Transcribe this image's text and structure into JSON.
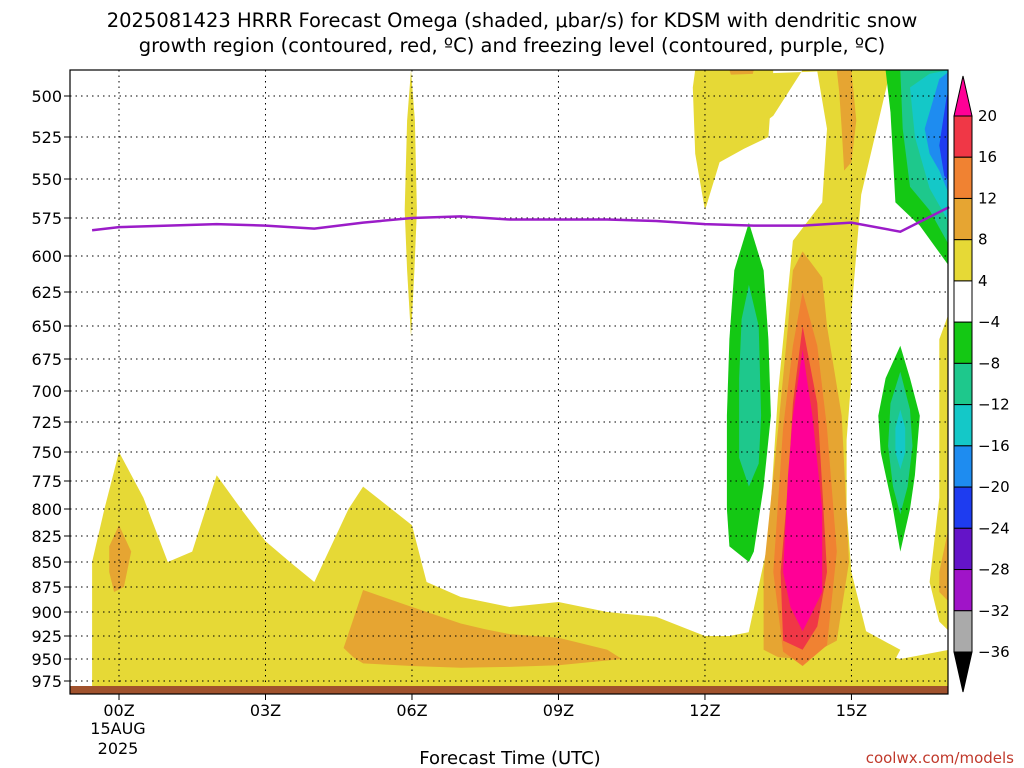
{
  "chart_data": {
    "type": "heatmap",
    "title": [
      "2025081423 HRRR Forecast Omega (shaded, μbar/s) for KDSM with dendritic snow",
      "growth region (contoured, red, ºC) and freezing level (contoured, purple, ºC)"
    ],
    "xlabel": "Forecast Time (UTC)",
    "ylabel": "",
    "x_range": [
      -0.55,
      17
    ],
    "y_range": [
      480,
      985
    ],
    "y_scale": "pressure (inverted, log-like)",
    "x_ticks": [
      {
        "x": 0,
        "label": "00Z"
      },
      {
        "x": 3,
        "label": "03Z"
      },
      {
        "x": 6,
        "label": "06Z"
      },
      {
        "x": 9,
        "label": "09Z"
      },
      {
        "x": 12,
        "label": "12Z"
      },
      {
        "x": 15,
        "label": "15Z"
      }
    ],
    "x_date_label": [
      "15AUG",
      "2025"
    ],
    "y_ticks": [
      500,
      525,
      550,
      575,
      600,
      625,
      650,
      675,
      700,
      725,
      750,
      775,
      800,
      825,
      850,
      875,
      900,
      925,
      950,
      975
    ],
    "grid": true,
    "colorbar": {
      "labels": [
        "20",
        "16",
        "12",
        "8",
        "4",
        "−4",
        "−8",
        "−12",
        "−16",
        "−20",
        "−24",
        "−28",
        "−32",
        "−36"
      ],
      "levels": [
        {
          "range": "above 20",
          "color": "#ff0096"
        },
        {
          "range": "16 to 20",
          "color": "#f03746"
        },
        {
          "range": "12 to 16",
          "color": "#f08232"
        },
        {
          "range": "8 to 12",
          "color": "#e6a532"
        },
        {
          "range": "4 to 8",
          "color": "#e6d936"
        },
        {
          "range": "-4 to 4",
          "color": "#ffffff"
        },
        {
          "range": "-8 to -4",
          "color": "#14c814"
        },
        {
          "range": "-12 to -8",
          "color": "#1ec88c"
        },
        {
          "range": "-16 to -12",
          "color": "#14c8c8"
        },
        {
          "range": "-20 to -16",
          "color": "#1e8cf0"
        },
        {
          "range": "-24 to -20",
          "color": "#1e3cf0"
        },
        {
          "range": "-28 to -24",
          "color": "#6414c8"
        },
        {
          "range": "-32 to -28",
          "color": "#a014c8"
        },
        {
          "range": "-36 to -32",
          "color": "#aaaaaa"
        },
        {
          "range": "below -36",
          "color": "#000000"
        }
      ]
    },
    "freezing_level": {
      "color": "#9b1cc8",
      "points": [
        [
          -0.55,
          583
        ],
        [
          0,
          581
        ],
        [
          1,
          580
        ],
        [
          2,
          579
        ],
        [
          3,
          580
        ],
        [
          4,
          582
        ],
        [
          5,
          578
        ],
        [
          6,
          575
        ],
        [
          7,
          574
        ],
        [
          8,
          576
        ],
        [
          9,
          576
        ],
        [
          10,
          576
        ],
        [
          11,
          577
        ],
        [
          12,
          579
        ],
        [
          13,
          580
        ],
        [
          14,
          580
        ],
        [
          15,
          578
        ],
        [
          16,
          584
        ],
        [
          17,
          568
        ]
      ]
    },
    "ground": {
      "color": "#a0522d",
      "pressure": 982
    },
    "regions": [
      {
        "color": "#e6d936",
        "points": [
          [
            -0.55,
            981
          ],
          [
            -0.55,
            850
          ],
          [
            -0.3,
            800
          ],
          [
            0,
            750
          ],
          [
            0.5,
            790
          ],
          [
            1,
            850
          ],
          [
            1.5,
            840
          ],
          [
            2,
            770
          ],
          [
            2.5,
            800
          ],
          [
            3,
            830
          ],
          [
            3.5,
            850
          ],
          [
            4,
            870
          ],
          [
            4.7,
            800
          ],
          [
            5,
            780
          ],
          [
            6,
            815
          ],
          [
            6.3,
            870
          ],
          [
            7,
            885
          ],
          [
            8,
            895
          ],
          [
            9,
            890
          ],
          [
            10,
            900
          ],
          [
            11,
            905
          ],
          [
            12,
            925
          ],
          [
            12.5,
            925
          ],
          [
            13,
            920
          ],
          [
            14,
            926
          ],
          [
            15,
            935
          ],
          [
            16,
            950
          ],
          [
            17,
            940
          ],
          [
            17,
            981
          ]
        ]
      },
      {
        "color": "#e6a532",
        "points": [
          [
            -0.2,
            835
          ],
          [
            0,
            815
          ],
          [
            0.25,
            840
          ],
          [
            0.1,
            875
          ],
          [
            -0.1,
            880
          ],
          [
            -0.2,
            860
          ]
        ]
      },
      {
        "color": "#e6a532",
        "points": [
          [
            4.6,
            938
          ],
          [
            5,
            878
          ],
          [
            6,
            895
          ],
          [
            7,
            912
          ],
          [
            7.5,
            918
          ],
          [
            8,
            923
          ],
          [
            9,
            927
          ],
          [
            10,
            940
          ],
          [
            10.3,
            950
          ],
          [
            9,
            957
          ],
          [
            8,
            959
          ],
          [
            7,
            960
          ],
          [
            6,
            958
          ],
          [
            5,
            955
          ],
          [
            4.8,
            948
          ]
        ]
      },
      {
        "color": "#e6d936",
        "points": [
          [
            5.85,
            570
          ],
          [
            5.9,
            515
          ],
          [
            5.98,
            468
          ],
          [
            6.06,
            515
          ],
          [
            6.1,
            570
          ],
          [
            6.05,
            610
          ],
          [
            5.98,
            658
          ],
          [
            5.9,
            610
          ]
        ]
      },
      {
        "color": "#e6d936",
        "points": [
          [
            11.8,
            468
          ],
          [
            13.4,
            468
          ],
          [
            13.3,
            525
          ],
          [
            12.8,
            532
          ],
          [
            12.3,
            540
          ],
          [
            12,
            570
          ],
          [
            11.8,
            535
          ],
          [
            11.75,
            490
          ]
        ]
      },
      {
        "color": "#e6a532",
        "points": [
          [
            12.5,
            468
          ],
          [
            13.0,
            468
          ],
          [
            12.9,
            492
          ],
          [
            12.75,
            500
          ],
          [
            12.6,
            488
          ]
        ]
      },
      {
        "color": "#e6d936",
        "points": [
          [
            12.2,
            475
          ],
          [
            12.3,
            520
          ],
          [
            12.6,
            530
          ],
          [
            13.4,
            512
          ],
          [
            14.0,
            468
          ],
          [
            15.8,
            468
          ],
          [
            15.2,
            560
          ],
          [
            15.0,
            640
          ],
          [
            15.0,
            690
          ],
          [
            14.9,
            740
          ],
          [
            14.9,
            800
          ],
          [
            15.0,
            860
          ],
          [
            15.3,
            920
          ],
          [
            16.0,
            940
          ],
          [
            15.9,
            950
          ],
          [
            15.0,
            960
          ],
          [
            14.5,
            965
          ],
          [
            13.5,
            960
          ],
          [
            13.0,
            955
          ],
          [
            12.8,
            945
          ],
          [
            12.9,
            920
          ],
          [
            13.3,
            830
          ],
          [
            13.5,
            700
          ],
          [
            13.8,
            590
          ],
          [
            14.4,
            565
          ],
          [
            14.5,
            520
          ],
          [
            14.3,
            470
          ]
        ]
      },
      {
        "color": "#e6a532",
        "points": [
          [
            14.7,
            468
          ],
          [
            15.0,
            468
          ],
          [
            15.1,
            515
          ],
          [
            15.0,
            540
          ],
          [
            14.85,
            545
          ],
          [
            14.8,
            520
          ],
          [
            14.75,
            495
          ]
        ]
      },
      {
        "color": "#e6a532",
        "points": [
          [
            14.0,
            597
          ],
          [
            14.4,
            615
          ],
          [
            14.5,
            650
          ],
          [
            14.8,
            720
          ],
          [
            14.95,
            850
          ],
          [
            14.7,
            930
          ],
          [
            14.0,
            950
          ],
          [
            13.5,
            948
          ],
          [
            13.2,
            940
          ],
          [
            13.2,
            860
          ],
          [
            13.5,
            730
          ],
          [
            13.7,
            650
          ],
          [
            13.8,
            610
          ]
        ]
      },
      {
        "color": "#f08232",
        "points": [
          [
            14.0,
            625
          ],
          [
            14.3,
            665
          ],
          [
            14.5,
            730
          ],
          [
            14.7,
            840
          ],
          [
            14.5,
            935
          ],
          [
            14.0,
            958
          ],
          [
            13.6,
            942
          ],
          [
            13.4,
            860
          ],
          [
            13.6,
            730
          ],
          [
            13.8,
            665
          ]
        ]
      },
      {
        "color": "#f03746",
        "points": [
          [
            14.0,
            650
          ],
          [
            14.3,
            710
          ],
          [
            14.4,
            780
          ],
          [
            14.5,
            860
          ],
          [
            14.3,
            915
          ],
          [
            14.0,
            940
          ],
          [
            13.6,
            930
          ],
          [
            13.55,
            860
          ],
          [
            13.7,
            780
          ],
          [
            13.8,
            710
          ]
        ]
      },
      {
        "color": "#ff0096",
        "points": [
          [
            14.0,
            668
          ],
          [
            14.2,
            720
          ],
          [
            14.4,
            800
          ],
          [
            14.4,
            880
          ],
          [
            14.2,
            900
          ],
          [
            14.0,
            920
          ],
          [
            13.75,
            895
          ],
          [
            13.6,
            860
          ],
          [
            13.7,
            770
          ],
          [
            13.8,
            720
          ]
        ]
      },
      {
        "color": "#e6d936",
        "points": [
          [
            17.0,
            640
          ],
          [
            16.8,
            660
          ],
          [
            16.8,
            720
          ],
          [
            16.8,
            790
          ],
          [
            16.6,
            870
          ],
          [
            16.8,
            910
          ],
          [
            17.0,
            920
          ]
        ]
      },
      {
        "color": "#e6a532",
        "points": [
          [
            17.0,
            815
          ],
          [
            16.8,
            860
          ],
          [
            16.8,
            880
          ],
          [
            17.0,
            890
          ]
        ]
      },
      {
        "color": "#14c814",
        "points": [
          [
            12.9,
            578
          ],
          [
            13.2,
            610
          ],
          [
            13.3,
            660
          ],
          [
            13.35,
            720
          ],
          [
            13.2,
            780
          ],
          [
            13.0,
            840
          ],
          [
            12.9,
            850
          ],
          [
            12.5,
            835
          ],
          [
            12.45,
            800
          ],
          [
            12.45,
            720
          ],
          [
            12.5,
            660
          ],
          [
            12.6,
            610
          ]
        ]
      },
      {
        "color": "#1ec88c",
        "points": [
          [
            12.9,
            620
          ],
          [
            13.1,
            650
          ],
          [
            13.15,
            720
          ],
          [
            13.1,
            760
          ],
          [
            12.9,
            780
          ],
          [
            12.7,
            755
          ],
          [
            12.7,
            690
          ],
          [
            12.75,
            645
          ]
        ]
      },
      {
        "color": "#14c814",
        "points": [
          [
            15.7,
            468
          ],
          [
            17.0,
            468
          ],
          [
            17.0,
            607
          ],
          [
            16.4,
            580
          ],
          [
            15.9,
            565
          ],
          [
            15.8,
            510
          ]
        ]
      },
      {
        "color": "#1ec88c",
        "points": [
          [
            16.0,
            468
          ],
          [
            17.0,
            468
          ],
          [
            17.0,
            593
          ],
          [
            16.6,
            570
          ],
          [
            16.2,
            555
          ],
          [
            16.05,
            520
          ]
        ]
      },
      {
        "color": "#14c8c8",
        "points": [
          [
            16.2,
            490
          ],
          [
            16.6,
            473
          ],
          [
            17.0,
            468
          ],
          [
            17.0,
            578
          ],
          [
            16.6,
            556
          ],
          [
            16.3,
            525
          ]
        ]
      },
      {
        "color": "#1e8cf0",
        "points": [
          [
            16.5,
            520
          ],
          [
            16.8,
            480
          ],
          [
            17.0,
            470
          ],
          [
            17.0,
            560
          ],
          [
            16.8,
            545
          ],
          [
            16.6,
            535
          ]
        ]
      },
      {
        "color": "#1e3cf0",
        "points": [
          [
            16.8,
            530
          ],
          [
            16.95,
            500
          ],
          [
            17.0,
            495
          ],
          [
            17.0,
            552
          ],
          [
            16.9,
            548
          ]
        ]
      },
      {
        "color": "#14c814",
        "points": [
          [
            16.0,
            665
          ],
          [
            16.2,
            690
          ],
          [
            16.4,
            720
          ],
          [
            16.3,
            770
          ],
          [
            16.2,
            800
          ],
          [
            16.0,
            840
          ],
          [
            15.85,
            800
          ],
          [
            15.6,
            750
          ],
          [
            15.55,
            720
          ],
          [
            15.7,
            690
          ]
        ]
      },
      {
        "color": "#1ec88c",
        "points": [
          [
            16.0,
            685
          ],
          [
            16.2,
            715
          ],
          [
            16.25,
            745
          ],
          [
            16.15,
            780
          ],
          [
            16.0,
            805
          ],
          [
            15.85,
            780
          ],
          [
            15.75,
            745
          ],
          [
            15.8,
            710
          ]
        ]
      },
      {
        "color": "#14c8c8",
        "points": [
          [
            16.0,
            715
          ],
          [
            16.1,
            730
          ],
          [
            16.1,
            750
          ],
          [
            16.0,
            765
          ],
          [
            15.9,
            750
          ],
          [
            15.9,
            730
          ]
        ]
      }
    ]
  },
  "credit": "coolwx.com/models"
}
